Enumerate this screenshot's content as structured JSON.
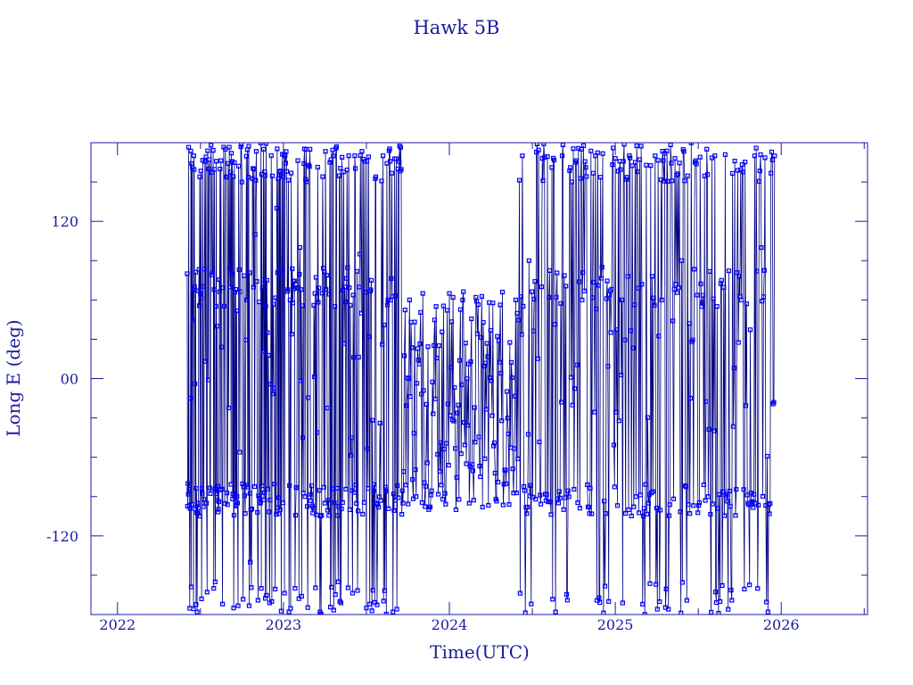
{
  "chart_data": {
    "type": "scatter",
    "title": "Hawk 5B",
    "xlabel": "Time(UTC)",
    "ylabel": "Long E (deg)",
    "xlim": [
      2021.84,
      2026.52
    ],
    "ylim": [
      -180,
      180
    ],
    "xticks": [
      "2022",
      "2023",
      "2024",
      "2025",
      "2026"
    ],
    "xtick_values": [
      2022,
      2023,
      2024,
      2025,
      2026
    ],
    "yticks": [
      "120",
      "00",
      "-120"
    ],
    "ytick_values": [
      120,
      0,
      -120
    ],
    "grid": false,
    "markers_connected": true,
    "series": [
      {
        "color": "#0000ff",
        "line_color": "#000080",
        "data_start": 2022.42,
        "data_end": 2025.96,
        "dense_band": {
          "x": [
            2023.72,
            2024.42
          ],
          "y": [
            -100,
            70
          ]
        },
        "points": [
          [
            2022.42,
            80
          ],
          [
            2022.44,
            -15
          ],
          [
            2022.46,
            170
          ],
          [
            2022.48,
            -178
          ],
          [
            2022.5,
            65
          ],
          [
            2022.52,
            -92
          ],
          [
            2022.55,
            160
          ],
          [
            2022.58,
            -160
          ],
          [
            2022.6,
            40
          ],
          [
            2022.62,
            -85
          ],
          [
            2022.65,
            175
          ],
          [
            2022.68,
            70
          ],
          [
            2022.7,
            -175
          ],
          [
            2022.72,
            -90
          ],
          [
            2022.75,
            150
          ],
          [
            2022.78,
            60
          ],
          [
            2022.8,
            -140
          ],
          [
            2022.83,
            110
          ],
          [
            2022.86,
            -95
          ],
          [
            2022.88,
            175
          ],
          [
            2022.9,
            75
          ],
          [
            2022.93,
            -170
          ],
          [
            2022.96,
            130
          ],
          [
            2022.98,
            -100
          ],
          [
            2023.01,
            170
          ],
          [
            2023.04,
            60
          ],
          [
            2023.07,
            -160
          ],
          [
            2023.1,
            100
          ],
          [
            2023.13,
            -90
          ],
          [
            2023.16,
            175
          ],
          [
            2023.19,
            65
          ],
          [
            2023.22,
            -178
          ],
          [
            2023.25,
            -95
          ],
          [
            2023.28,
            165
          ],
          [
            2023.31,
            55
          ],
          [
            2023.34,
            -170
          ],
          [
            2023.37,
            70
          ],
          [
            2023.4,
            -100
          ],
          [
            2023.43,
            170
          ],
          [
            2023.46,
            95
          ],
          [
            2023.5,
            -175
          ],
          [
            2023.53,
            75
          ],
          [
            2023.56,
            -95
          ],
          [
            2023.6,
            170
          ],
          [
            2023.63,
            60
          ],
          [
            2023.66,
            -178
          ],
          [
            2023.69,
            160
          ],
          [
            2023.72,
            -95
          ],
          [
            2023.76,
            60
          ],
          [
            2023.8,
            -90
          ],
          [
            2023.84,
            65
          ],
          [
            2023.88,
            -98
          ],
          [
            2023.92,
            55
          ],
          [
            2023.96,
            -92
          ],
          [
            2024.0,
            65
          ],
          [
            2024.04,
            -100
          ],
          [
            2024.08,
            60
          ],
          [
            2024.12,
            -95
          ],
          [
            2024.16,
            62
          ],
          [
            2024.2,
            -98
          ],
          [
            2024.24,
            58
          ],
          [
            2024.28,
            -92
          ],
          [
            2024.32,
            66
          ],
          [
            2024.36,
            -96
          ],
          [
            2024.4,
            60
          ],
          [
            2024.44,
            170
          ],
          [
            2024.48,
            90
          ],
          [
            2024.52,
            -92
          ],
          [
            2024.56,
            168
          ],
          [
            2024.6,
            62
          ],
          [
            2024.64,
            -178
          ],
          [
            2024.68,
            170
          ],
          [
            2024.72,
            -90
          ],
          [
            2024.76,
            165
          ],
          [
            2024.8,
            60
          ],
          [
            2024.84,
            -98
          ],
          [
            2024.88,
            170
          ],
          [
            2024.92,
            85
          ],
          [
            2024.96,
            -170
          ],
          [
            2025.0,
            168
          ],
          [
            2025.04,
            60
          ],
          [
            2025.08,
            -100
          ],
          [
            2025.12,
            165
          ],
          [
            2025.16,
            72
          ],
          [
            2025.2,
            -95
          ],
          [
            2025.24,
            170
          ],
          [
            2025.28,
            60
          ],
          [
            2025.32,
            -176
          ],
          [
            2025.36,
            168
          ],
          [
            2025.4,
            90
          ],
          [
            2025.44,
            -96
          ],
          [
            2025.48,
            165
          ],
          [
            2025.52,
            55
          ],
          [
            2025.56,
            -90
          ],
          [
            2025.6,
            170
          ],
          [
            2025.64,
            75
          ],
          [
            2025.68,
            -176
          ],
          [
            2025.72,
            166
          ],
          [
            2025.76,
            60
          ],
          [
            2025.8,
            -95
          ],
          [
            2025.84,
            170
          ],
          [
            2025.88,
            100
          ],
          [
            2025.92,
            -178
          ],
          [
            2025.96,
            170
          ]
        ]
      }
    ]
  }
}
